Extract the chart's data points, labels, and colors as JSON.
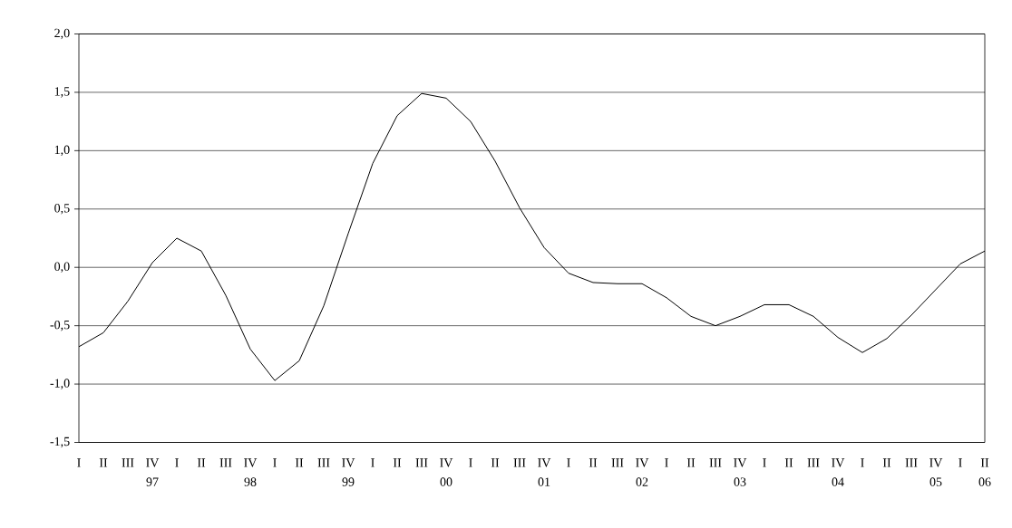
{
  "chart_data": {
    "type": "line",
    "categories": [
      "I",
      "II",
      "III",
      "IV",
      "I",
      "II",
      "III",
      "IV",
      "I",
      "II",
      "III",
      "IV",
      "I",
      "II",
      "III",
      "IV",
      "I",
      "II",
      "III",
      "IV",
      "I",
      "II",
      "III",
      "IV",
      "I",
      "II",
      "III",
      "IV",
      "I",
      "II",
      "III",
      "IV",
      "I",
      "II",
      "III",
      "IV",
      "I",
      "II"
    ],
    "values": [
      -0.68,
      -0.56,
      -0.29,
      0.04,
      0.25,
      0.14,
      -0.24,
      -0.7,
      -0.97,
      -0.8,
      -0.33,
      0.29,
      0.89,
      1.3,
      1.49,
      1.45,
      1.25,
      0.91,
      0.51,
      0.17,
      -0.05,
      -0.13,
      -0.14,
      -0.14,
      -0.26,
      -0.42,
      -0.5,
      -0.42,
      -0.32,
      -0.32,
      -0.42,
      -0.6,
      -0.73,
      -0.61,
      -0.41,
      -0.19,
      0.03,
      0.14
    ],
    "color": "#000000",
    "ylim": [
      -1.5,
      2.0
    ],
    "yticks": [
      {
        "value": -1.5,
        "label": "-1,5"
      },
      {
        "value": -1.0,
        "label": "-1,0"
      },
      {
        "value": -0.5,
        "label": "-0,5"
      },
      {
        "value": 0.0,
        "label": "0,0"
      },
      {
        "value": 0.5,
        "label": "0,5"
      },
      {
        "value": 1.0,
        "label": "1,0"
      },
      {
        "value": 1.5,
        "label": "1,5"
      },
      {
        "value": 2.0,
        "label": "2,0"
      }
    ],
    "grid": "y",
    "marker": "none",
    "line_style": "solid",
    "annotations": [
      "97",
      "98",
      "99",
      "00",
      "01",
      "02",
      "03",
      "04",
      "05",
      "06"
    ]
  }
}
